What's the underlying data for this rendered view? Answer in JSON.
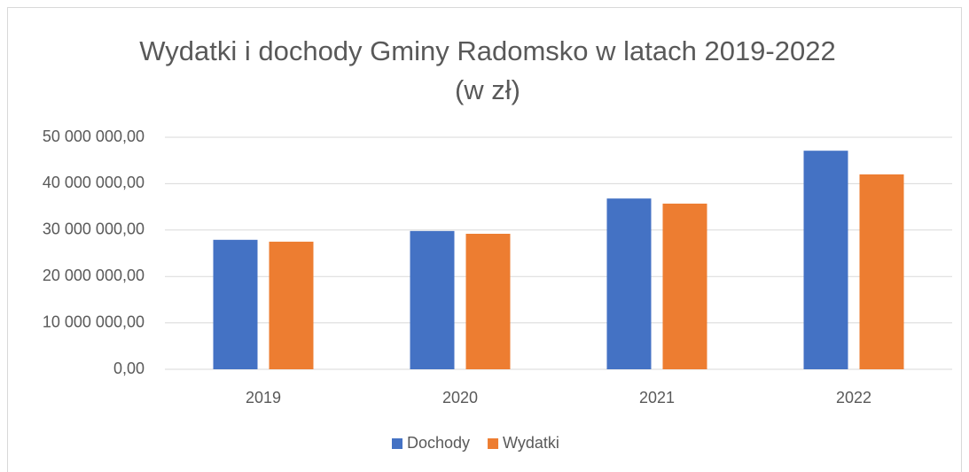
{
  "chart_data": {
    "type": "bar",
    "title": "Wydatki i dochody Gminy Radomsko w latach 2019-2022",
    "subtitle": "(w zł)",
    "categories": [
      "2019",
      "2020",
      "2021",
      "2022"
    ],
    "series": [
      {
        "name": "Dochody",
        "color": "#4472c4",
        "values": [
          27900000,
          29800000,
          36800000,
          47100000
        ]
      },
      {
        "name": "Wydatki",
        "color": "#ed7d31",
        "values": [
          27500000,
          29200000,
          35700000,
          42000000
        ]
      }
    ],
    "ylim": [
      0,
      50000000
    ],
    "yticks": [
      {
        "value": 0,
        "label": "0,00"
      },
      {
        "value": 10000000,
        "label": "10 000 000,00"
      },
      {
        "value": 20000000,
        "label": "20 000 000,00"
      },
      {
        "value": 30000000,
        "label": "30 000 000,00"
      },
      {
        "value": 40000000,
        "label": "40 000 000,00"
      },
      {
        "value": 50000000,
        "label": "50 000 000,00"
      }
    ],
    "grid": true,
    "legend": "bottom"
  }
}
